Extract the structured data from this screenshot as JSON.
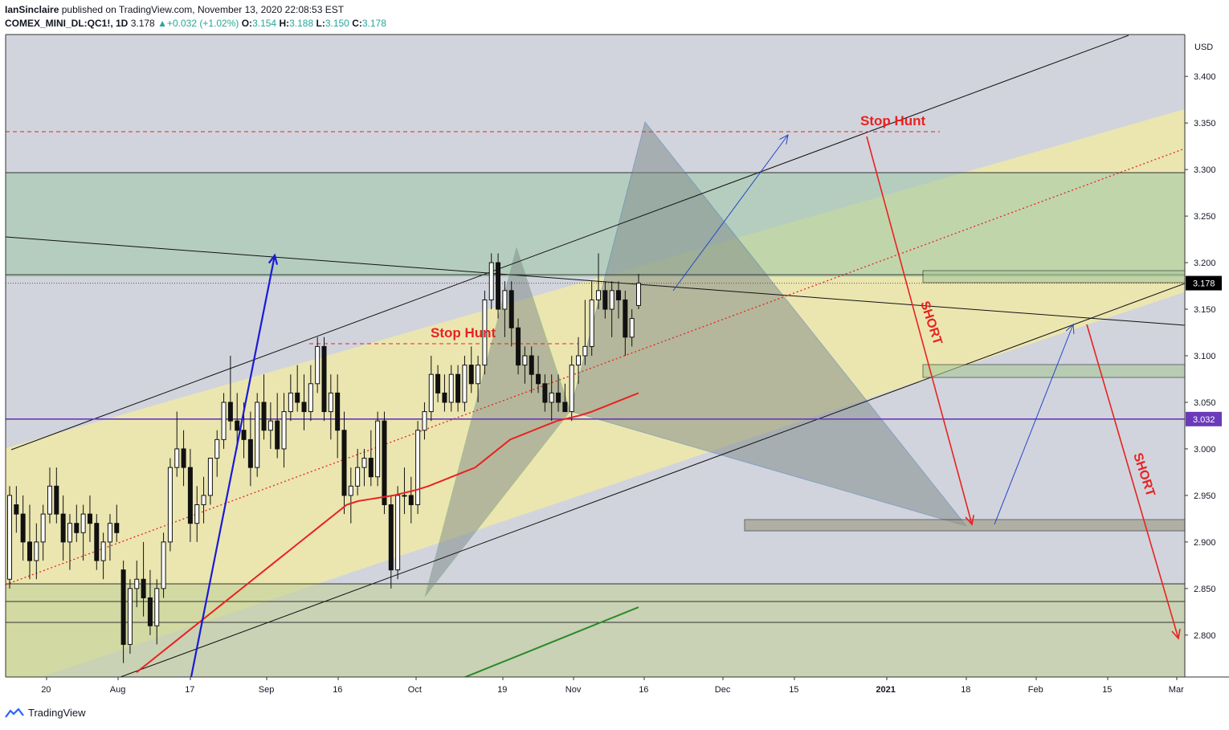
{
  "header": {
    "publisher": "IanSinclaire",
    "published_text": "published on TradingView.com, November 13, 2020 22:08:53 EST",
    "symbol": "COMEX_MINI_DL:QC1!, 1D",
    "last": "3.178",
    "change": "+0.032 (+1.02%)",
    "o_label": "O:",
    "o": "3.154",
    "h_label": "H:",
    "h": "3.188",
    "l_label": "L:",
    "l": "3.150",
    "c_label": "C:",
    "c": "3.178"
  },
  "footer": {
    "brand": "TradingView"
  },
  "colors": {
    "upper_bg": "#d1d4dc",
    "channel_fill": "#f0e9a8",
    "triangle_fill": "#7f8a88",
    "red": "#e82222",
    "blue": "#1a1ad8",
    "green": "#2a8a2a",
    "purple": "#6a3ab8",
    "teal_zone": "#9fc7a6"
  },
  "chart_data": {
    "type": "candlestick",
    "currency": "USD",
    "ylim": [
      2.755,
      3.445
    ],
    "yticks": [
      "3.400",
      "3.350",
      "3.300",
      "3.250",
      "3.200",
      "3.150",
      "3.100",
      "3.050",
      "3.000",
      "2.950",
      "2.900",
      "2.850",
      "2.800"
    ],
    "xticks": [
      "20",
      "Aug",
      "17",
      "Sep",
      "16",
      "Oct",
      "19",
      "Nov",
      "16",
      "Dec",
      "15",
      "2021",
      "18",
      "Feb",
      "15",
      "Mar"
    ],
    "price_labels": [
      {
        "text": "3.178",
        "value": 3.178
      },
      {
        "text": "3.032",
        "value": 3.032
      }
    ],
    "annotations": [
      {
        "text": "Stop Hunt",
        "near": "top-right"
      },
      {
        "text": "Stop Hunt",
        "near": "middle"
      },
      {
        "text": "SHORT",
        "near": "right"
      },
      {
        "text": "SHORT",
        "near": "far-right"
      }
    ],
    "candles_ohlc": [
      [
        2.86,
        2.96,
        2.85,
        2.95
      ],
      [
        2.94,
        2.96,
        2.91,
        2.93
      ],
      [
        2.93,
        2.95,
        2.88,
        2.9
      ],
      [
        2.9,
        2.94,
        2.86,
        2.88
      ],
      [
        2.88,
        2.92,
        2.86,
        2.9
      ],
      [
        2.9,
        2.94,
        2.88,
        2.93
      ],
      [
        2.93,
        2.98,
        2.92,
        2.96
      ],
      [
        2.96,
        2.98,
        2.92,
        2.93
      ],
      [
        2.93,
        2.95,
        2.88,
        2.9
      ],
      [
        2.9,
        2.93,
        2.87,
        2.92
      ],
      [
        2.92,
        2.94,
        2.9,
        2.91
      ],
      [
        2.91,
        2.94,
        2.88,
        2.93
      ],
      [
        2.93,
        2.95,
        2.9,
        2.92
      ],
      [
        2.92,
        2.93,
        2.87,
        2.88
      ],
      [
        2.88,
        2.91,
        2.86,
        2.9
      ],
      [
        2.9,
        2.93,
        2.88,
        2.92
      ],
      [
        2.92,
        2.94,
        2.9,
        2.91
      ],
      [
        2.87,
        2.88,
        2.77,
        2.79
      ],
      [
        2.79,
        2.86,
        2.78,
        2.85
      ],
      [
        2.85,
        2.88,
        2.83,
        2.86
      ],
      [
        2.86,
        2.9,
        2.82,
        2.84
      ],
      [
        2.84,
        2.87,
        2.8,
        2.81
      ],
      [
        2.81,
        2.86,
        2.79,
        2.85
      ],
      [
        2.85,
        2.91,
        2.84,
        2.9
      ],
      [
        2.9,
        2.99,
        2.89,
        2.98
      ],
      [
        2.98,
        3.04,
        2.97,
        3.0
      ],
      [
        3.0,
        3.02,
        2.96,
        2.98
      ],
      [
        2.98,
        3.0,
        2.9,
        2.92
      ],
      [
        2.92,
        2.96,
        2.9,
        2.94
      ],
      [
        2.94,
        2.97,
        2.92,
        2.95
      ],
      [
        2.95,
        2.99,
        2.94,
        2.99
      ],
      [
        2.99,
        3.02,
        2.97,
        3.01
      ],
      [
        3.01,
        3.06,
        3.0,
        3.05
      ],
      [
        3.05,
        3.1,
        3.02,
        3.03
      ],
      [
        3.03,
        3.06,
        3.0,
        3.02
      ],
      [
        3.02,
        3.05,
        2.99,
        3.01
      ],
      [
        3.01,
        3.04,
        2.96,
        2.98
      ],
      [
        2.98,
        3.06,
        2.97,
        3.05
      ],
      [
        3.05,
        3.08,
        3.01,
        3.02
      ],
      [
        3.02,
        3.05,
        3.0,
        3.03
      ],
      [
        3.03,
        3.06,
        2.99,
        3.0
      ],
      [
        3.0,
        3.06,
        2.98,
        3.04
      ],
      [
        3.04,
        3.08,
        3.03,
        3.06
      ],
      [
        3.06,
        3.09,
        3.04,
        3.05
      ],
      [
        3.05,
        3.08,
        3.02,
        3.04
      ],
      [
        3.04,
        3.09,
        3.03,
        3.07
      ],
      [
        3.07,
        3.12,
        3.06,
        3.11
      ],
      [
        3.11,
        3.12,
        3.03,
        3.04
      ],
      [
        3.04,
        3.08,
        3.01,
        3.06
      ],
      [
        3.06,
        3.08,
        2.99,
        3.02
      ],
      [
        3.02,
        3.04,
        2.93,
        2.95
      ],
      [
        2.95,
        2.98,
        2.92,
        2.96
      ],
      [
        2.96,
        3.0,
        2.95,
        2.98
      ],
      [
        2.98,
        3.0,
        2.96,
        2.99
      ],
      [
        2.99,
        3.02,
        2.96,
        2.97
      ],
      [
        2.97,
        3.04,
        2.96,
        3.03
      ],
      [
        3.03,
        3.04,
        2.93,
        2.94
      ],
      [
        2.94,
        2.95,
        2.85,
        2.87
      ],
      [
        2.87,
        2.96,
        2.86,
        2.95
      ],
      [
        2.95,
        2.98,
        2.93,
        2.95
      ],
      [
        2.95,
        2.97,
        2.92,
        2.94
      ],
      [
        2.94,
        3.03,
        2.93,
        3.02
      ],
      [
        3.02,
        3.05,
        3.01,
        3.04
      ],
      [
        3.04,
        3.1,
        3.03,
        3.08
      ],
      [
        3.08,
        3.09,
        3.05,
        3.06
      ],
      [
        3.06,
        3.08,
        3.04,
        3.05
      ],
      [
        3.05,
        3.09,
        3.04,
        3.08
      ],
      [
        3.08,
        3.09,
        3.04,
        3.05
      ],
      [
        3.05,
        3.1,
        3.04,
        3.09
      ],
      [
        3.09,
        3.11,
        3.06,
        3.07
      ],
      [
        3.07,
        3.1,
        3.05,
        3.09
      ],
      [
        3.09,
        3.17,
        3.08,
        3.16
      ],
      [
        3.16,
        3.21,
        3.15,
        3.2
      ],
      [
        3.2,
        3.21,
        3.14,
        3.15
      ],
      [
        3.15,
        3.18,
        3.12,
        3.17
      ],
      [
        3.17,
        3.18,
        3.11,
        3.13
      ],
      [
        3.13,
        3.14,
        3.08,
        3.09
      ],
      [
        3.09,
        3.11,
        3.07,
        3.1
      ],
      [
        3.1,
        3.11,
        3.06,
        3.08
      ],
      [
        3.08,
        3.1,
        3.06,
        3.07
      ],
      [
        3.07,
        3.08,
        3.04,
        3.05
      ],
      [
        3.05,
        3.08,
        3.03,
        3.06
      ],
      [
        3.06,
        3.08,
        3.04,
        3.05
      ],
      [
        3.05,
        3.07,
        3.04,
        3.04
      ],
      [
        3.04,
        3.1,
        3.03,
        3.09
      ],
      [
        3.09,
        3.12,
        3.07,
        3.1
      ],
      [
        3.1,
        3.16,
        3.09,
        3.11
      ],
      [
        3.11,
        3.18,
        3.1,
        3.16
      ],
      [
        3.16,
        3.21,
        3.15,
        3.17
      ],
      [
        3.17,
        3.18,
        3.14,
        3.15
      ],
      [
        3.15,
        3.18,
        3.12,
        3.17
      ],
      [
        3.17,
        3.18,
        3.14,
        3.16
      ],
      [
        3.16,
        3.17,
        3.1,
        3.12
      ],
      [
        3.12,
        3.15,
        3.11,
        3.14
      ],
      [
        3.154,
        3.188,
        3.15,
        3.178
      ]
    ],
    "ema_red": [
      2.76,
      2.77,
      2.78,
      2.79,
      2.8,
      2.81,
      2.82,
      2.83,
      2.84,
      2.85,
      2.86,
      2.87,
      2.88,
      2.89,
      2.9,
      2.91,
      2.92,
      2.93,
      2.94,
      2.944,
      2.946,
      2.948,
      2.95,
      2.953,
      2.956,
      2.96,
      2.965,
      2.97,
      2.975,
      2.98,
      2.99,
      3.0,
      3.01,
      3.015,
      3.02,
      3.025,
      3.03,
      3.033,
      3.036,
      3.04,
      3.045,
      3.05,
      3.055,
      3.06
    ],
    "sma_green": [
      2.75,
      2.76,
      2.77,
      2.78,
      2.79,
      2.8,
      2.81,
      2.82,
      2.83
    ]
  }
}
